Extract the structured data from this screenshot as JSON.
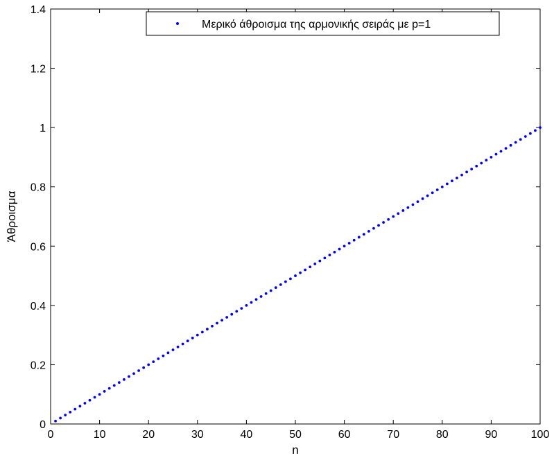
{
  "chart_data": {
    "type": "scatter",
    "xlabel": "n",
    "ylabel": "Άθροισμα",
    "xlim": [
      0,
      100
    ],
    "ylim": [
      0,
      1.4
    ],
    "xticks": [
      0,
      10,
      20,
      30,
      40,
      50,
      60,
      70,
      80,
      90,
      100
    ],
    "xtick_labels": [
      "0",
      "10",
      "20",
      "30",
      "40",
      "50",
      "60",
      "70",
      "80",
      "90",
      "100"
    ],
    "yticks": [
      0,
      0.2,
      0.4,
      0.6,
      0.8,
      1,
      1.2,
      1.4
    ],
    "ytick_labels": [
      "0",
      "0.2",
      "0.4",
      "0.6",
      "0.8",
      "1",
      "1.2",
      "1.4"
    ],
    "grid": false,
    "legend_position": "top-right",
    "series": [
      {
        "name": "Μερικό άθροισμα της αρμονικής σειράς με p=1",
        "color": "#0000ff",
        "marker": "dot",
        "x_range": [
          1,
          100
        ],
        "y_formula": "n/100",
        "x": [
          1,
          2,
          3,
          4,
          5,
          6,
          7,
          8,
          9,
          10,
          11,
          12,
          13,
          14,
          15,
          16,
          17,
          18,
          19,
          20,
          21,
          22,
          23,
          24,
          25,
          26,
          27,
          28,
          29,
          30,
          31,
          32,
          33,
          34,
          35,
          36,
          37,
          38,
          39,
          40,
          41,
          42,
          43,
          44,
          45,
          46,
          47,
          48,
          49,
          50,
          51,
          52,
          53,
          54,
          55,
          56,
          57,
          58,
          59,
          60,
          61,
          62,
          63,
          64,
          65,
          66,
          67,
          68,
          69,
          70,
          71,
          72,
          73,
          74,
          75,
          76,
          77,
          78,
          79,
          80,
          81,
          82,
          83,
          84,
          85,
          86,
          87,
          88,
          89,
          90,
          91,
          92,
          93,
          94,
          95,
          96,
          97,
          98,
          99,
          100
        ],
        "y": [
          0.01,
          0.02,
          0.03,
          0.04,
          0.05,
          0.06,
          0.07,
          0.08,
          0.09,
          0.1,
          0.11,
          0.12,
          0.13,
          0.14,
          0.15,
          0.16,
          0.17,
          0.18,
          0.19,
          0.2,
          0.21,
          0.22,
          0.23,
          0.24,
          0.25,
          0.26,
          0.27,
          0.28,
          0.29,
          0.3,
          0.31,
          0.32,
          0.33,
          0.34,
          0.35,
          0.36,
          0.37,
          0.38,
          0.39,
          0.4,
          0.41,
          0.42,
          0.43,
          0.44,
          0.45,
          0.46,
          0.47,
          0.48,
          0.49,
          0.5,
          0.51,
          0.52,
          0.53,
          0.54,
          0.55,
          0.56,
          0.57,
          0.58,
          0.59,
          0.6,
          0.61,
          0.62,
          0.63,
          0.64,
          0.65,
          0.66,
          0.67,
          0.68,
          0.69,
          0.7,
          0.71,
          0.72,
          0.73,
          0.74,
          0.75,
          0.76,
          0.77,
          0.78,
          0.79,
          0.8,
          0.81,
          0.82,
          0.83,
          0.84,
          0.85,
          0.86,
          0.87,
          0.88,
          0.89,
          0.9,
          0.91,
          0.92,
          0.93,
          0.94,
          0.95,
          0.96,
          0.97,
          0.98,
          0.99,
          1.0
        ]
      }
    ]
  }
}
